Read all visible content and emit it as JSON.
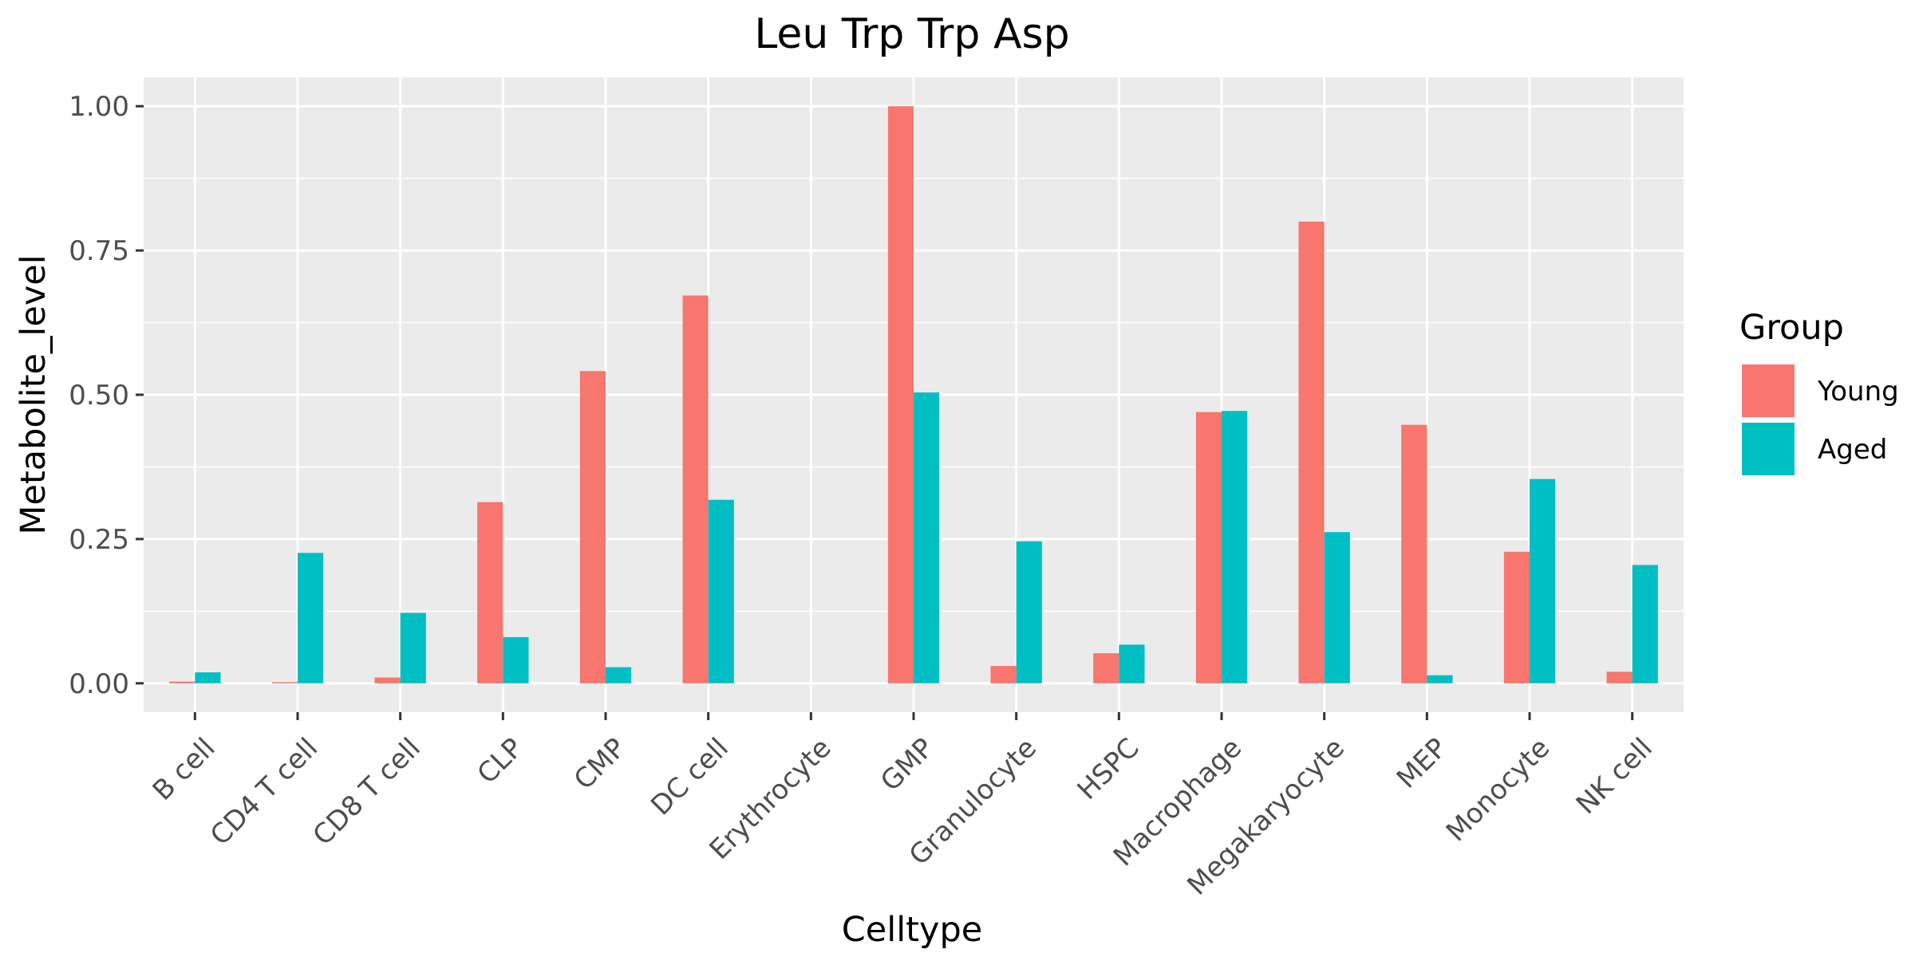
{
  "chart_data": {
    "type": "bar",
    "title": "Leu Trp Trp Asp",
    "xlabel": "Celltype",
    "ylabel": "Metabolite_level",
    "categories": [
      "B cell",
      "CD4 T cell",
      "CD8 T cell",
      "CLP",
      "CMP",
      "DC cell",
      "Erythrocyte",
      "GMP",
      "Granulocyte",
      "HSPC",
      "Macrophage",
      "Megakaryocyte",
      "MEP",
      "Monocyte",
      "NK cell"
    ],
    "series": [
      {
        "name": "Young",
        "color": "#F8766D",
        "values": [
          0.003,
          0.002,
          0.01,
          0.314,
          0.541,
          0.672,
          0.0,
          1.0,
          0.03,
          0.052,
          0.47,
          0.8,
          0.448,
          0.228,
          0.02
        ]
      },
      {
        "name": "Aged",
        "color": "#00BFC4",
        "values": [
          0.019,
          0.226,
          0.122,
          0.08,
          0.028,
          0.318,
          0.0,
          0.504,
          0.246,
          0.067,
          0.472,
          0.262,
          0.014,
          0.354,
          0.205
        ]
      }
    ],
    "ylim": [
      -0.05,
      1.05
    ],
    "yticks": [
      0.0,
      0.25,
      0.5,
      0.75,
      1.0
    ],
    "ytick_labels": [
      "0.00",
      "0.25",
      "0.50",
      "0.75",
      "1.00"
    ],
    "legend": {
      "title": "Group",
      "position": "right"
    },
    "grid": true
  }
}
